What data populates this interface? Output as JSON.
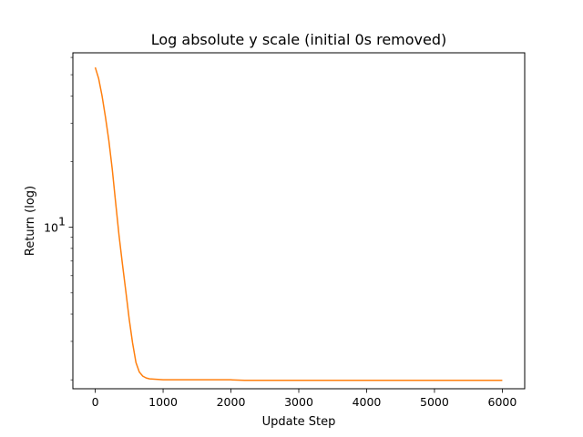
{
  "chart_data": {
    "type": "line",
    "title": "Log absolute y scale (initial 0s removed)",
    "xlabel": "Update Step",
    "ylabel": "Return (log)",
    "xlim": [
      -330,
      6330
    ],
    "ylim": [
      1.82,
      63
    ],
    "yscale": "log",
    "grid": false,
    "x_ticks": [
      0,
      1000,
      2000,
      3000,
      4000,
      5000,
      6000
    ],
    "y_major_ticks": [
      {
        "value": 10,
        "base": "10",
        "exp": "1"
      }
    ],
    "y_minor_ticks": [
      2,
      3,
      4,
      5,
      6,
      7,
      8,
      9,
      20,
      30,
      40,
      50,
      60
    ],
    "series": [
      {
        "color": "#ff7f0e",
        "x": [
          0,
          50,
          100,
          150,
          200,
          250,
          300,
          350,
          400,
          450,
          500,
          550,
          600,
          650,
          700,
          750,
          800,
          900,
          1000,
          1200,
          1400,
          1600,
          1800,
          2000,
          2200,
          2400,
          2600,
          2800,
          3000,
          3200,
          3400,
          3600,
          3800,
          4000,
          4200,
          4400,
          4600,
          4800,
          5000,
          5200,
          5400,
          5600,
          5800,
          6000
        ],
        "y": [
          54.0,
          48.0,
          40.0,
          32.0,
          25.0,
          18.5,
          13.0,
          9.2,
          6.8,
          5.1,
          3.8,
          2.95,
          2.4,
          2.17,
          2.08,
          2.04,
          2.02,
          2.01,
          2.0,
          2.0,
          2.0,
          2.0,
          2.0,
          2.0,
          1.99,
          1.99,
          1.99,
          1.99,
          1.99,
          1.99,
          1.99,
          1.99,
          1.99,
          1.99,
          1.99,
          1.99,
          1.99,
          1.99,
          1.99,
          1.99,
          1.99,
          1.99,
          1.99,
          1.99
        ]
      }
    ]
  }
}
